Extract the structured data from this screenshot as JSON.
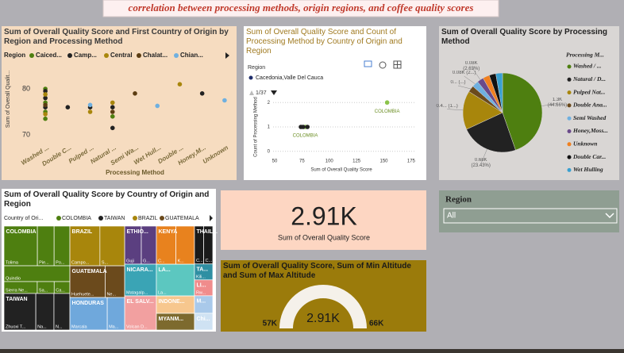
{
  "title": "correlation between processing methods, origin regions, and coffee quality scores",
  "chart_data": [
    {
      "type": "strip",
      "title": "Sum of Overall Quality Score and First Country of Origin by Region and Processing Method",
      "legend_title": "Region",
      "x_label": "Processing Method",
      "y_label": "Sum of Overall Qualit...",
      "categories": [
        "Washed ...",
        "Double C...",
        "Pulped ...",
        "Natural ...",
        "Semi Wa...",
        "Wet Hull...",
        "Double ...",
        "Honey,M...",
        "Unknown"
      ],
      "ylim": [
        68,
        85
      ],
      "yticks": [
        70,
        80
      ],
      "series": [
        {
          "name": "Caiced...",
          "color": "#4e7f10",
          "x": [
            "Washed ...",
            "Washed ...",
            "Washed ...",
            "Washed ...",
            "Natural ..."
          ],
          "values": [
            80,
            77,
            75,
            73.5,
            74
          ]
        },
        {
          "name": "Camp...",
          "color": "#222222",
          "x": [
            "Washed ...",
            "Washed ...",
            "Washed ...",
            "Double C...",
            "Pulped ...",
            "Natural ...",
            "Natural ...",
            "Honey,M..."
          ],
          "values": [
            79.5,
            78,
            76,
            76,
            76,
            71.5,
            76,
            79
          ]
        },
        {
          "name": "Central",
          "color": "#a8860c",
          "x": [
            "Washed ...",
            "Washed ...",
            "Pulped ...",
            "Double ...",
            "Natural ..."
          ],
          "values": [
            78.8,
            74.5,
            75,
            81,
            77
          ]
        },
        {
          "name": "Chalat...",
          "color": "#5c3d12",
          "x": [
            "Washed ...",
            "Natural ...",
            "Semi Wa..."
          ],
          "values": [
            76.5,
            75,
            79
          ]
        },
        {
          "name": "Chian...",
          "color": "#6fb0e0",
          "x": [
            "Wet Hull...",
            "Unknown",
            "Pulped ..."
          ],
          "values": [
            76.3,
            77.5,
            76.5
          ]
        }
      ]
    },
    {
      "type": "scatter",
      "title": "Sum of Overall Quality Score and Count of Processing Method by Country of Origin and Region",
      "legend": {
        "title": "Region",
        "items": [
          {
            "name": "Cacedonia,Valle Del Cauca",
            "color": "#1f2d6b"
          }
        ]
      },
      "legend_page": "1/37",
      "x_label": "Sum of Overall Quality Score",
      "y_label": "Count of Processing Method",
      "xlim": [
        42,
        178
      ],
      "xticks": [
        50,
        75,
        100,
        125,
        150,
        175
      ],
      "ylim": [
        -0.3,
        2.3
      ],
      "yticks": [
        0,
        1,
        2
      ],
      "grid": true,
      "series": [
        {
          "color": "#8bc34a",
          "x": [
            153,
            78
          ],
          "values": [
            2,
            1
          ],
          "labels": [
            "COLOMBIA",
            "COLOMBIA"
          ]
        },
        {
          "color": "#222222",
          "x": [
            74,
            76,
            80
          ],
          "values": [
            1,
            1,
            1
          ]
        }
      ]
    },
    {
      "type": "pie",
      "title": "Sum of Overall Quality Score by Processing Method",
      "legend_title": "Processing M...",
      "categories": [
        "Washed / ...",
        "Natural / D...",
        "Pulped Nat...",
        "Double Ana...",
        "Semi Washed",
        "Honey,Moss...",
        "Unknown",
        "Double Car...",
        "Wet Hulling"
      ],
      "values": [
        1300,
        682,
        461,
        77,
        77,
        76.6,
        79,
        79,
        79.4
      ],
      "value_labels": [
        "1.3K (44.66%)",
        "0.68K (23.43%)",
        "0.4... (1...)",
        "0... (...)",
        "0.08K (2...)",
        "0.08K (2.63%)",
        null,
        null,
        null
      ],
      "colors": [
        "#4e7f10",
        "#222222",
        "#a8860c",
        "#6b4a1c",
        "#6fb0e0",
        "#6a4a8a",
        "#f08020",
        "#111111",
        "#3aa0d0"
      ]
    },
    {
      "type": "treemap",
      "title": "Sum of Overall Quality Score by Country of Origin and Region",
      "legend_title": "Country of Ori...",
      "countries": [
        {
          "name": "COLOMBIA",
          "color": "#4e7f10",
          "regions": [
            {
              "name": "Tolima",
              "value": 178
            },
            {
              "name": "Pie...",
              "value": 89
            },
            {
              "name": "Po...",
              "value": 84
            },
            {
              "name": "Quindio",
              "value": 140
            },
            {
              "name": "Sierra Ne...",
              "value": 53
            },
            {
              "name": "Sa...",
              "value": 27
            },
            {
              "name": "Ca...",
              "value": 25
            }
          ]
        },
        {
          "name": "TAIWAN",
          "color": "#222222",
          "regions": [
            {
              "name": "Zhuoxi T...",
              "value": 156
            },
            {
              "name": "Na...",
              "value": 89
            },
            {
              "name": "N...",
              "value": 78
            }
          ]
        },
        {
          "name": "BRAZIL",
          "color": "#a8860c",
          "regions": [
            {
              "name": "Campo...",
              "value": 160
            },
            {
              "name": "S...",
              "value": 132
            }
          ]
        },
        {
          "name": "GUATEMALA",
          "color": "#6b4a1c",
          "regions": [
            {
              "name": "Huehuete...",
              "value": 150
            },
            {
              "name": "Ne...",
              "value": 83
            }
          ]
        },
        {
          "name": "HONDURAS",
          "color": "#6fa8dc",
          "regions": [
            {
              "name": "Marcala",
              "value": 163
            },
            {
              "name": "Ma...",
              "value": 76
            }
          ]
        },
        {
          "name": "ETHIO...",
          "color": "#5b3f80",
          "regions": [
            {
              "name": "Guji",
              "value": 85
            },
            {
              "name": "G...",
              "value": 77
            }
          ]
        },
        {
          "name": "NICARA...",
          "color": "#3aa4b5",
          "regions": [
            {
              "name": "Matagalp...",
              "value": 135
            }
          ]
        },
        {
          "name": "EL SALV...",
          "color": "#f2a0a0",
          "regions": [
            {
              "name": "Volcan D...",
              "value": 145
            }
          ]
        },
        {
          "name": "KENYA",
          "color": "#e8821e",
          "regions": [
            {
              "name": "C...",
              "value": 100
            },
            {
              "name": "K...",
              "value": 95
            }
          ]
        },
        {
          "name": "LA...",
          "color": "#5cc7c0",
          "regions": [
            {
              "name": "La...",
              "value": 162
            }
          ]
        },
        {
          "name": "INDONE...",
          "color": "#f7c78e",
          "value": 89
        },
        {
          "name": "MYANM...",
          "color": "#7d6a2e",
          "value": 85
        },
        {
          "name": "THAIL...",
          "color": "#1a1a1a",
          "regions": [
            {
              "name": "C...",
              "value": 47
            },
            {
              "name": "C...",
              "value": 46
            }
          ]
        },
        {
          "name": "TA...",
          "color": "#2f8fa3",
          "regions": [
            {
              "name": "Kili...",
              "value": 39
            }
          ]
        },
        {
          "name": "LI...",
          "color": "#f08c8c",
          "regions": [
            {
              "name": "Rw...",
              "value": 39
            }
          ]
        },
        {
          "name": "M...",
          "color": "#a9c9ea",
          "value": 43
        },
        {
          "name": "Chi...",
          "color": "#cfe2f3",
          "value": 41
        }
      ]
    },
    {
      "type": "gauge",
      "title": "Sum of Overall Quality Score, Sum of Min Altitude and Sum of Max Altitude",
      "value": 2910,
      "value_label": "2.91K",
      "ylim": [
        57000,
        66000
      ],
      "yticks": [
        {
          "value": 57000,
          "label": "57K"
        },
        {
          "value": 66000,
          "label": "66K"
        }
      ]
    }
  ],
  "card": {
    "value": "2.91K",
    "label": "Sum of Overall Quality Score"
  },
  "slicer": {
    "title": "Region",
    "selected": "All"
  }
}
